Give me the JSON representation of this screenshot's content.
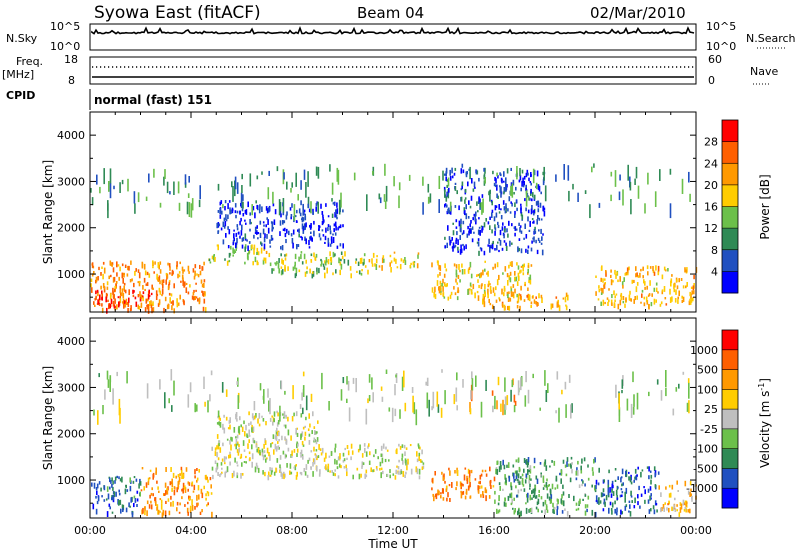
{
  "header": {
    "station": "Syowa East (fitACF)",
    "beam": "Beam 04",
    "date": "02/Mar/2010"
  },
  "aux_panels": {
    "nsky_label": "N.Sky",
    "nsky_top": "10^5",
    "nsky_bottom": "10^0",
    "nsearch_label": "N.Search",
    "nsearch_top": "10^5",
    "nsearch_bottom": "10^0",
    "freq_label_1": "Freq.",
    "freq_label_2": "[MHz]",
    "freq_top": "18",
    "freq_bottom": "8",
    "nave_label": "Nave",
    "nave_top": "60",
    "nave_bottom": "0",
    "cpid_label": "CPID",
    "cpid_value": "normal (fast) 151"
  },
  "chart_data": [
    {
      "type": "heatmap",
      "name": "power",
      "xlabel": "",
      "ylabel": "Slant Range [km]",
      "xlim": [
        0,
        24
      ],
      "ylim": [
        180,
        4500
      ],
      "yticks": [
        "1000",
        "2000",
        "3000",
        "4000"
      ],
      "colorbar_label": "Power [dB]",
      "colorbar_ticks": [
        "4",
        "8",
        "12",
        "16",
        "20",
        "24",
        "28"
      ],
      "colorbar_colors": [
        "#0000ff",
        "#2050c0",
        "#2f8a55",
        "#6cc04a",
        "#ffcc00",
        "#ff9900",
        "#ff5f00",
        "#ff0000"
      ],
      "regions": [
        {
          "x": [
            0.0,
            4.6
          ],
          "y": [
            250,
            1300
          ],
          "level": 0.72
        },
        {
          "x": [
            0.0,
            2.5
          ],
          "y": [
            250,
            700
          ],
          "level": 0.88
        },
        {
          "x": [
            4.6,
            7.0
          ],
          "y": [
            1250,
            1650
          ],
          "level": 0.5
        },
        {
          "x": [
            7.0,
            11.0
          ],
          "y": [
            1000,
            1500
          ],
          "level": 0.46
        },
        {
          "x": [
            11.0,
            13.0
          ],
          "y": [
            1150,
            1500
          ],
          "level": 0.55
        },
        {
          "x": [
            13.5,
            17.5
          ],
          "y": [
            500,
            1300
          ],
          "level": 0.6
        },
        {
          "x": [
            15.5,
            19.0
          ],
          "y": [
            300,
            600
          ],
          "level": 0.66
        },
        {
          "x": [
            20.0,
            24.0
          ],
          "y": [
            350,
            1200
          ],
          "level": 0.62
        },
        {
          "x": [
            5.0,
            10.0
          ],
          "y": [
            1600,
            2600
          ],
          "level": 0.12
        },
        {
          "x": [
            14.0,
            18.0
          ],
          "y": [
            1500,
            3300
          ],
          "level": 0.16
        },
        {
          "x": [
            0.0,
            24.0
          ],
          "y": [
            2500,
            3400
          ],
          "level": 0.34
        }
      ]
    },
    {
      "type": "heatmap",
      "name": "velocity",
      "xlabel": "Time UT",
      "ylabel": "Slant Range [km]",
      "xlim": [
        0,
        24
      ],
      "ylim": [
        180,
        4500
      ],
      "yticks": [
        "1000",
        "2000",
        "3000",
        "4000"
      ],
      "xticks": [
        "00:00",
        "04:00",
        "08:00",
        "12:00",
        "16:00",
        "20:00",
        "00:00"
      ],
      "colorbar_label": "Velocity [m s^-1]",
      "colorbar_ticks": [
        "1000",
        "500",
        "100",
        "25",
        "-25",
        "-100",
        "-500",
        "-1000"
      ],
      "colorbar_colors": [
        "#0000ff",
        "#2050c0",
        "#2f8a55",
        "#6cc04a",
        "#bfbfbf",
        "#ffcc00",
        "#ff9900",
        "#ff5f00",
        "#ff0000"
      ],
      "regions": [
        {
          "x": [
            0.0,
            2.0
          ],
          "y": [
            300,
            1100
          ],
          "level": 0.22
        },
        {
          "x": [
            2.0,
            4.8
          ],
          "y": [
            300,
            1300
          ],
          "level": 0.72
        },
        {
          "x": [
            4.8,
            13.2
          ],
          "y": [
            1100,
            1800
          ],
          "level": 0.5
        },
        {
          "x": [
            5.0,
            9.0
          ],
          "y": [
            1800,
            2500
          ],
          "level": 0.5
        },
        {
          "x": [
            13.5,
            16.0
          ],
          "y": [
            600,
            1300
          ],
          "level": 0.76
        },
        {
          "x": [
            15.0,
            17.0
          ],
          "y": [
            2500,
            3300
          ],
          "level": 0.72
        },
        {
          "x": [
            16.0,
            20.0
          ],
          "y": [
            300,
            1500
          ],
          "level": 0.33
        },
        {
          "x": [
            20.0,
            22.5
          ],
          "y": [
            300,
            1300
          ],
          "level": 0.2
        },
        {
          "x": [
            22.5,
            24.0
          ],
          "y": [
            300,
            1000
          ],
          "level": 0.65
        },
        {
          "x": [
            0.0,
            24.0
          ],
          "y": [
            2500,
            3400
          ],
          "level": 0.45
        }
      ]
    }
  ]
}
